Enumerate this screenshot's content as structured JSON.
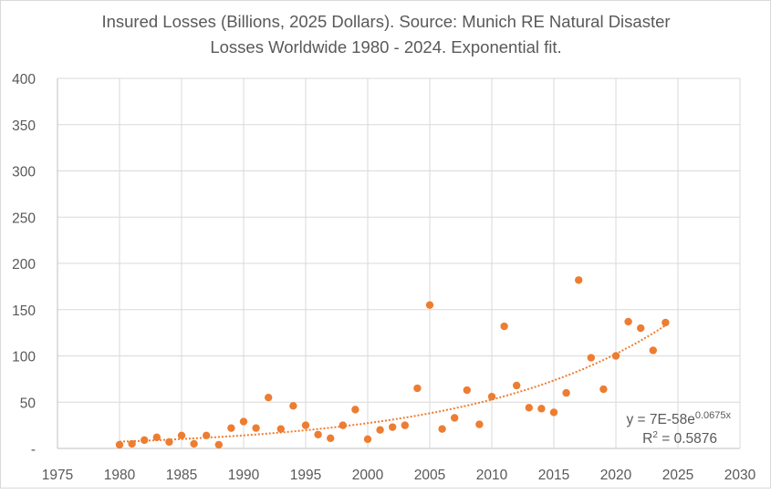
{
  "chart_data": {
    "type": "scatter",
    "title_lines": [
      "Insured Losses (Billions, 2025 Dollars). Source: Munich RE Natural Disaster",
      "Losses Worldwide 1980 - 2024. Exponential fit."
    ],
    "xlabel": "",
    "ylabel": "",
    "xlim": [
      1975,
      2030
    ],
    "ylim": [
      0,
      400
    ],
    "xticks": [
      1975,
      1980,
      1985,
      1990,
      1995,
      2000,
      2005,
      2010,
      2015,
      2020,
      2025,
      2030
    ],
    "yticks": [
      0,
      50,
      100,
      150,
      200,
      250,
      300,
      350,
      400
    ],
    "ytick_labels": [
      "-",
      "50",
      "100",
      "150",
      "200",
      "250",
      "300",
      "350",
      "400"
    ],
    "grid": true,
    "marker_color": "#ED7D31",
    "trendline": {
      "type": "exponential",
      "style": "dotted",
      "color": "#ED7D31",
      "equation_prefix": "y = 7E-58e",
      "equation_exponent": "0.0675x",
      "r2_prefix": "R",
      "r2_suffix": " = 0.5876"
    },
    "x": [
      1980,
      1981,
      1982,
      1983,
      1984,
      1985,
      1986,
      1987,
      1988,
      1989,
      1990,
      1991,
      1992,
      1993,
      1994,
      1995,
      1996,
      1997,
      1998,
      1999,
      2000,
      2001,
      2002,
      2003,
      2004,
      2005,
      2006,
      2007,
      2008,
      2009,
      2010,
      2011,
      2012,
      2013,
      2014,
      2015,
      2016,
      2017,
      2018,
      2019,
      2020,
      2021,
      2022,
      2023,
      2024
    ],
    "y": [
      4,
      5,
      9,
      12,
      7,
      14,
      5,
      14,
      4,
      22,
      29,
      22,
      55,
      21,
      46,
      25,
      15,
      11,
      25,
      42,
      10,
      20,
      23,
      25,
      65,
      155,
      21,
      33,
      63,
      26,
      56,
      132,
      68,
      44,
      43,
      39,
      60,
      182,
      98,
      64,
      100,
      137,
      130,
      106,
      136
    ]
  }
}
